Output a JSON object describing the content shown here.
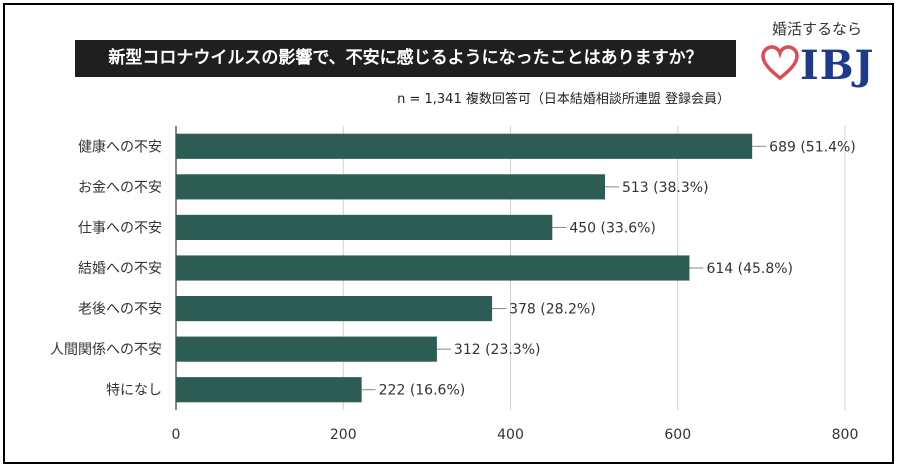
{
  "header": {
    "title": "新型コロナウイルスの影響で、不安に感じるようになったことはありますか？",
    "subtitle": "n = 1,341 複数回答可（日本結婚相談所連盟 登録会員）"
  },
  "logo": {
    "tagline": "婚活するなら",
    "text": "IBJ",
    "icon": "heart-icon",
    "heart_color": "#e04a55",
    "text_color": "#1e3a8a"
  },
  "chart_data": {
    "type": "bar",
    "orientation": "horizontal",
    "title": "新型コロナウイルスの影響で、不安に感じるようになったことはありますか？",
    "subtitle": "n = 1,341 複数回答可（日本結婚相談所連盟 登録会員）",
    "categories": [
      "健康への不安",
      "お金への不安",
      "仕事への不安",
      "結婚への不安",
      "老後への不安",
      "人間関係への不安",
      "特になし"
    ],
    "values": [
      689,
      513,
      450,
      614,
      378,
      312,
      222
    ],
    "data_labels": [
      "689 (51.4%)",
      "513 (38.3%)",
      "450 (33.6%)",
      "614 (45.8%)",
      "378 (28.2%)",
      "312 (23.3%)",
      "222 (16.6%)"
    ],
    "xlim": [
      0,
      800
    ],
    "xticks": [
      0,
      200,
      400,
      600,
      800
    ],
    "bar_color": "#2d5c55",
    "grid": true
  }
}
